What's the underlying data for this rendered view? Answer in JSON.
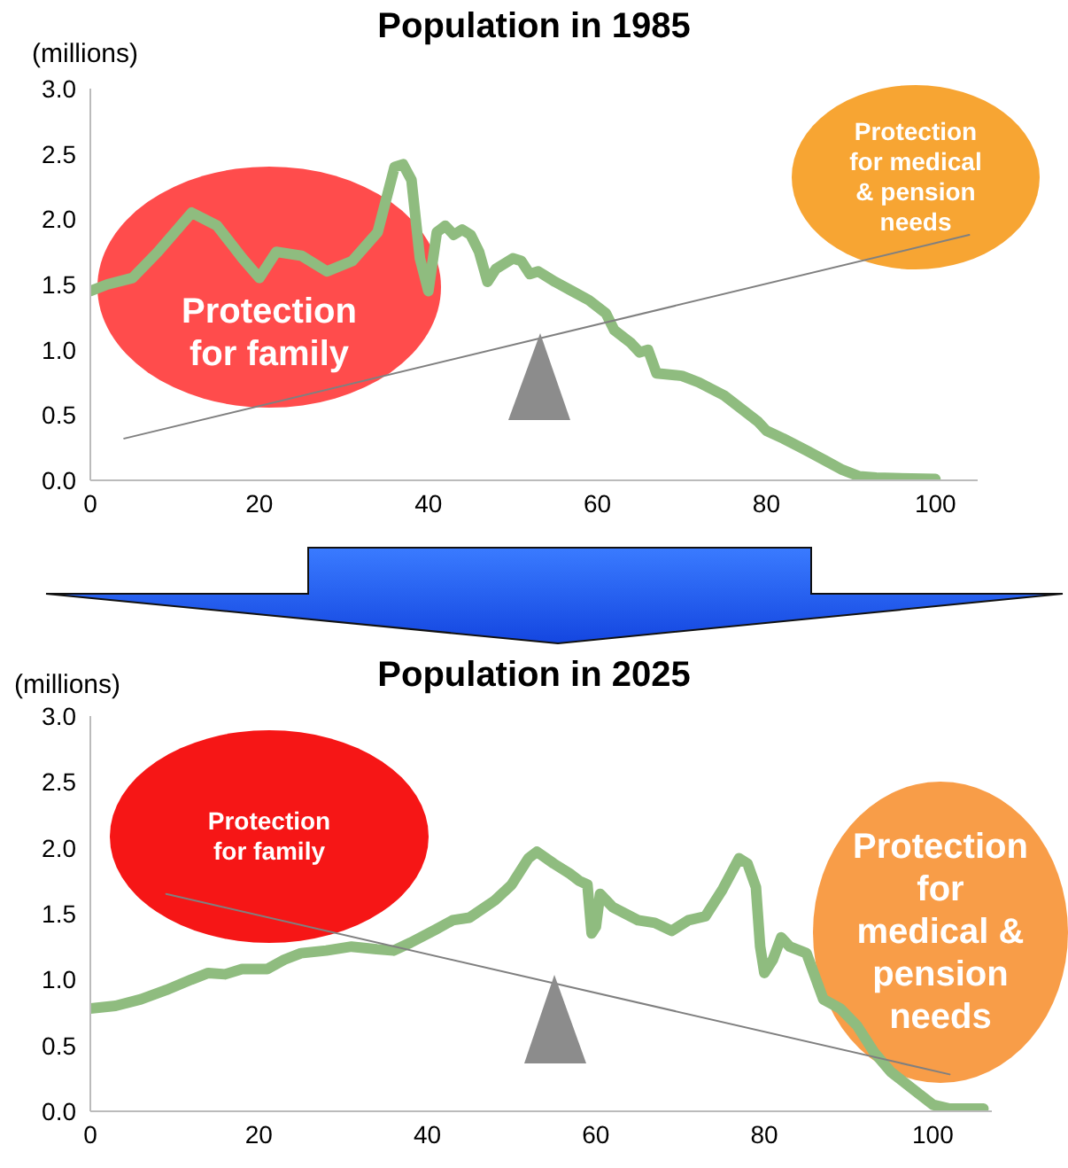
{
  "chart_data": [
    {
      "type": "line",
      "title": "Population in 1985",
      "ylabel": "(millions)",
      "xlim": [
        0,
        105
      ],
      "xticks": [
        0,
        20,
        40,
        60,
        80,
        100
      ],
      "ylim": [
        0,
        3
      ],
      "yticks": [
        {
          "value": 0,
          "label": "0.0"
        },
        0.5,
        {
          "value": 1,
          "label": "1.0"
        },
        1.5,
        {
          "value": 2,
          "label": "2.0"
        },
        2.5,
        {
          "value": 3,
          "label": "3.0"
        }
      ],
      "grid": false,
      "legend": false,
      "marker": "none",
      "annotations": [
        "Protection for family",
        "Protection for medical & pension needs"
      ],
      "series": [
        {
          "color": "#8fbc7f",
          "x": [
            0,
            2,
            5,
            8,
            12,
            15,
            18,
            20,
            22,
            25,
            28,
            31,
            34,
            36,
            37,
            38,
            39,
            40,
            41,
            42,
            43,
            44,
            45,
            46,
            47,
            48,
            50,
            51,
            52,
            53,
            55,
            57,
            59,
            61,
            62,
            64,
            65,
            66,
            67,
            70,
            72,
            75,
            77,
            79,
            80,
            82,
            85,
            87,
            89,
            91,
            93,
            100
          ],
          "values": [
            1.45,
            1.5,
            1.55,
            1.75,
            2.05,
            1.95,
            1.7,
            1.55,
            1.75,
            1.72,
            1.6,
            1.68,
            1.9,
            2.4,
            2.42,
            2.3,
            1.7,
            1.45,
            1.9,
            1.95,
            1.88,
            1.92,
            1.88,
            1.75,
            1.52,
            1.62,
            1.7,
            1.68,
            1.58,
            1.6,
            1.52,
            1.45,
            1.38,
            1.28,
            1.15,
            1.05,
            0.98,
            1.0,
            0.82,
            0.8,
            0.75,
            0.65,
            0.55,
            0.45,
            0.38,
            0.32,
            0.22,
            0.15,
            0.08,
            0.03,
            0.02,
            0.01
          ]
        },
        {
          "type": "line",
          "color": "#808080",
          "x": [
            4,
            104
          ],
          "values": [
            0.32,
            1.88
          ]
        }
      ]
    },
    {
      "type": "line",
      "title": "Population in 2025",
      "ylabel": "(millions)",
      "xlim": [
        0,
        107
      ],
      "xticks": [
        0,
        20,
        40,
        60,
        80,
        100
      ],
      "ylim": [
        0,
        3
      ],
      "yticks": [
        {
          "value": 0,
          "label": "0.0"
        },
        0.5,
        {
          "value": 1,
          "label": "1.0"
        },
        1.5,
        {
          "value": 2,
          "label": "2.0"
        },
        2.5,
        {
          "value": 3,
          "label": "3.0"
        }
      ],
      "grid": false,
      "legend": false,
      "marker": "none",
      "annotations": [
        "Protection for family",
        "Protection for medical & pension needs"
      ],
      "series": [
        {
          "color": "#8fbc7f",
          "x": [
            0,
            3,
            6,
            9,
            12,
            14,
            16,
            18,
            21,
            23,
            25,
            28,
            31,
            34,
            36,
            38,
            41,
            43,
            45,
            48,
            50,
            52,
            53,
            55,
            57,
            58,
            59,
            59.5,
            60,
            60.5,
            62,
            65,
            67,
            69,
            71,
            73,
            75,
            77,
            78,
            79,
            79.5,
            80,
            81,
            82,
            83,
            85,
            87,
            89,
            91,
            93,
            95,
            98,
            100,
            102,
            106
          ],
          "values": [
            0.78,
            0.8,
            0.85,
            0.92,
            1.0,
            1.05,
            1.04,
            1.08,
            1.08,
            1.15,
            1.2,
            1.22,
            1.25,
            1.23,
            1.22,
            1.28,
            1.38,
            1.45,
            1.47,
            1.6,
            1.72,
            1.92,
            1.97,
            1.88,
            1.8,
            1.75,
            1.72,
            1.35,
            1.4,
            1.65,
            1.55,
            1.45,
            1.43,
            1.37,
            1.45,
            1.48,
            1.68,
            1.92,
            1.88,
            1.7,
            1.25,
            1.05,
            1.15,
            1.32,
            1.25,
            1.2,
            0.85,
            0.78,
            0.65,
            0.45,
            0.3,
            0.15,
            0.05,
            0.02,
            0.02
          ]
        },
        {
          "type": "line",
          "color": "#808080",
          "x": [
            9,
            102
          ],
          "values": [
            1.65,
            0.28
          ]
        }
      ]
    }
  ]
}
